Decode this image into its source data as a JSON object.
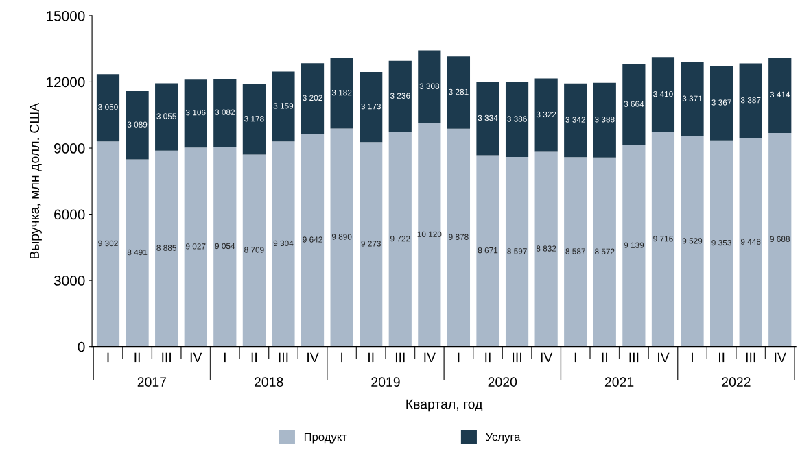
{
  "chart_data": {
    "type": "bar",
    "stacked": true,
    "xlabel": "Квартал, год",
    "ylabel": "Выручка, млн долл. США",
    "categories": [
      "I",
      "II",
      "III",
      "IV",
      "I",
      "II",
      "III",
      "IV",
      "I",
      "II",
      "III",
      "IV",
      "I",
      "II",
      "III",
      "IV",
      "I",
      "II",
      "III",
      "IV",
      "I",
      "II",
      "III",
      "IV"
    ],
    "series": [
      {
        "name": "Продукт",
        "color": "#a9b8c9",
        "values": [
          9302,
          8491,
          8885,
          9027,
          9054,
          8709,
          9304,
          9642,
          9890,
          9273,
          9722,
          10120,
          9878,
          8671,
          8597,
          8832,
          8587,
          8572,
          9139,
          9716,
          9529,
          9353,
          9448,
          9688
        ],
        "value_labels": [
          "9 302",
          "8 491",
          "8 885",
          "9 027",
          "9 054",
          "8 709",
          "9 304",
          "9 642",
          "9 890",
          "9 273",
          "9 722",
          "10 120",
          "9 878",
          "8 671",
          "8 597",
          "8 832",
          "8 587",
          "8 572",
          "9 139",
          "9 716",
          "9 529",
          "9 353",
          "9 448",
          "9 688"
        ]
      },
      {
        "name": "Услуга",
        "color": "#1c3a4e",
        "values": [
          3050,
          3089,
          3055,
          3106,
          3082,
          3178,
          3159,
          3202,
          3182,
          3173,
          3236,
          3308,
          3281,
          3334,
          3386,
          3322,
          3342,
          3388,
          3664,
          3410,
          3371,
          3367,
          3387,
          3414
        ],
        "value_labels": [
          "3 050",
          "3 089",
          "3 055",
          "3 106",
          "3 082",
          "3 178",
          "3 159",
          "3 202",
          "3 182",
          "3 173",
          "3 236",
          "3 308",
          "3 281",
          "3 334",
          "3 386",
          "3 322",
          "3 342",
          "3 388",
          "3 664",
          "3 410",
          "3 371",
          "3 367",
          "3 387",
          "3 414"
        ]
      }
    ],
    "annotations": [
      "2017",
      "2018",
      "2019",
      "2020",
      "2021",
      "2022"
    ],
    "ylim": [
      0,
      15000
    ],
    "yticks": [
      0,
      3000,
      6000,
      9000,
      12000,
      15000
    ],
    "grid": false,
    "legend": "bottom"
  }
}
